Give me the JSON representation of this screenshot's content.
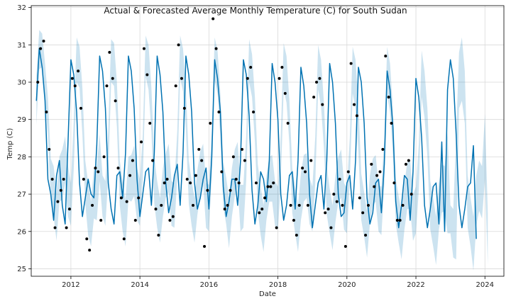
{
  "colors": {
    "forecast_line": "#0072B2",
    "uncertainty_band": "#0072B2",
    "actual_points": "#000000",
    "grid": "#d9d9d9",
    "axis": "#000000"
  },
  "chart_data": {
    "type": "line",
    "title": "Actual & Forecasted Average Monthly Temperature (C) for South Sudan",
    "xlabel": "Date",
    "ylabel": "Temp (C)",
    "x_ticks": [
      2012,
      2014,
      2016,
      2018,
      2020,
      2022,
      2024
    ],
    "y_ticks": [
      25,
      26,
      27,
      28,
      29,
      30,
      31,
      32
    ],
    "xlim": [
      2010.85,
      2024.55
    ],
    "ylim": [
      24.8,
      32.05
    ],
    "grid": true,
    "legend": "none",
    "series": [
      {
        "kind": "band",
        "x_start": 2011.0,
        "x_step": 0.08333,
        "note_units": "decimal year",
        "lower": [
          28.85,
          30.35,
          30.4,
          29.5,
          28.6,
          26.75,
          26.4,
          25.75,
          26.8,
          26.85,
          27.3,
          26.4,
          26.15,
          27.7,
          30.0,
          29.85,
          28.6,
          26.75,
          25.9,
          25.6,
          26.35,
          26.3,
          27.35,
          26.4,
          26.15,
          27.5,
          30.0,
          29.9,
          28.8,
          26.7,
          26.0,
          25.6,
          26.85,
          26.8,
          26.95,
          26.3,
          26.15,
          27.4,
          30.15,
          29.8,
          28.65,
          26.75,
          26.1,
          25.7,
          26.4,
          26.9,
          27.05,
          26.15,
          26.1,
          27.45,
          30.1,
          29.75,
          28.7,
          26.75,
          26.15,
          25.7,
          26.45,
          26.95,
          27.3,
          26.1,
          26.0,
          27.5,
          30.05,
          29.7,
          28.5,
          26.65,
          26.2,
          25.55,
          26.4,
          26.95,
          27.2,
          26.0,
          26.1,
          27.4,
          30.0,
          29.6,
          28.4,
          26.55,
          25.9,
          25.45,
          26.3,
          26.8,
          26.8,
          26.15,
          26.05,
          27.3,
          29.8,
          29.45,
          28.35,
          26.5,
          25.95,
          25.45,
          26.3,
          26.8,
          26.9,
          26.2,
          26.0,
          27.3,
          29.8,
          29.35,
          28.25,
          26.45,
          25.95,
          25.5,
          26.25,
          26.8,
          26.9,
          26.05,
          25.95,
          27.3,
          29.7,
          29.3,
          28.15,
          26.3,
          25.85,
          25.3,
          26.2,
          26.7,
          26.8,
          26.0,
          25.9,
          27.25,
          29.65,
          29.2,
          28.05,
          26.2,
          25.7,
          25.25,
          26.05,
          26.6,
          26.6,
          25.75,
          25.95,
          27.1,
          29.6,
          29.05,
          28.0,
          26.05,
          25.6,
          25.1,
          26.05,
          26.5,
          26.55,
          25.95,
          25.95,
          25.3,
          25.25,
          29.3,
          29.5,
          28.9,
          26.1,
          25.6,
          24.95,
          26.15,
          26.55,
          26.35,
          27.4,
          25.1
        ],
        "upper": [
          30.2,
          31.4,
          31.3,
          30.5,
          29.6,
          27.95,
          27.75,
          27.05,
          28.0,
          28.2,
          28.55,
          27.75,
          27.3,
          29.0,
          31.2,
          30.95,
          29.85,
          27.9,
          27.3,
          26.8,
          27.7,
          27.75,
          28.6,
          27.5,
          27.35,
          28.75,
          31.15,
          31.05,
          30.0,
          27.9,
          27.35,
          26.85,
          28.0,
          28.05,
          28.3,
          27.7,
          27.4,
          28.6,
          31.25,
          31.0,
          29.85,
          28.0,
          27.35,
          26.9,
          27.7,
          28.1,
          28.35,
          27.35,
          27.3,
          28.7,
          31.25,
          30.9,
          29.85,
          27.9,
          27.35,
          26.9,
          27.65,
          28.15,
          28.35,
          27.3,
          27.25,
          28.7,
          31.2,
          30.85,
          29.7,
          27.85,
          27.45,
          26.9,
          27.7,
          28.2,
          28.4,
          27.25,
          27.25,
          28.6,
          31.15,
          30.75,
          29.6,
          27.8,
          27.2,
          26.7,
          27.5,
          28.0,
          28.05,
          27.35,
          27.2,
          28.6,
          31.05,
          30.7,
          29.5,
          27.7,
          27.2,
          26.7,
          27.55,
          28.05,
          28.1,
          27.45,
          27.2,
          28.55,
          31.0,
          30.6,
          29.45,
          27.75,
          27.15,
          26.7,
          27.5,
          28.0,
          28.2,
          27.3,
          27.15,
          28.5,
          30.95,
          30.6,
          29.45,
          27.55,
          27.05,
          26.55,
          27.5,
          27.95,
          28.05,
          27.25,
          27.2,
          28.5,
          30.95,
          30.5,
          29.3,
          27.4,
          26.95,
          26.5,
          27.3,
          27.85,
          27.9,
          27.0,
          27.2,
          28.35,
          30.85,
          30.3,
          29.3,
          27.35,
          26.9,
          26.4,
          27.3,
          27.8,
          27.75,
          28.65,
          26.7,
          26.6,
          28.6,
          30.8,
          31.2,
          30.3,
          27.5,
          26.9,
          26.4,
          27.5,
          27.9,
          27.75,
          29.15,
          26.5
        ]
      },
      {
        "name": "",
        "kind": "forecast",
        "x_start": 2011.0,
        "x_step": 0.08333,
        "values": [
          29.5,
          30.9,
          30.4,
          29.5,
          27.4,
          27.0,
          26.3,
          27.5,
          27.9,
          26.7,
          26.2,
          28.4,
          30.6,
          30.2,
          29.2,
          27.3,
          26.4,
          26.9,
          27.4,
          27.0,
          26.9,
          28.3,
          30.7,
          30.3,
          29.3,
          27.3,
          26.6,
          26.2,
          27.5,
          27.6,
          26.9,
          28.1,
          30.7,
          30.3,
          29.3,
          27.4,
          26.4,
          27.0,
          27.6,
          27.7,
          26.7,
          28.1,
          30.7,
          30.2,
          29.2,
          27.3,
          26.5,
          26.9,
          27.5,
          27.8,
          26.7,
          28.1,
          30.7,
          30.2,
          29.2,
          27.3,
          26.6,
          26.9,
          27.4,
          27.7,
          26.6,
          28.0,
          30.6,
          30.1,
          29.2,
          27.2,
          26.4,
          26.8,
          27.4,
          27.4,
          26.7,
          27.9,
          30.6,
          30.2,
          29.1,
          27.1,
          26.2,
          26.7,
          27.6,
          27.4,
          26.8,
          27.9,
          30.5,
          30.0,
          29.0,
          27.0,
          26.3,
          26.7,
          27.5,
          27.6,
          26.6,
          27.9,
          30.4,
          29.9,
          28.9,
          27.0,
          26.1,
          26.7,
          27.3,
          27.5,
          26.6,
          27.9,
          30.5,
          30.0,
          28.9,
          27.0,
          26.4,
          26.5,
          27.3,
          27.5,
          26.6,
          27.9,
          30.4,
          30.0,
          28.9,
          26.9,
          26.2,
          26.5,
          27.3,
          27.4,
          26.5,
          27.8,
          30.3,
          29.8,
          28.8,
          26.8,
          26.1,
          26.7,
          27.5,
          27.4,
          26.3,
          27.6,
          30.1,
          29.6,
          28.5,
          26.7,
          26.1,
          26.6,
          27.2,
          27.3,
          26.2,
          28.4,
          26.0,
          29.8,
          30.6,
          30.1,
          28.6,
          26.7,
          26.1,
          26.6,
          27.2,
          27.3,
          28.3,
          25.8
        ]
      },
      {
        "name": "",
        "kind": "actual",
        "points": [
          [
            2011.04,
            30.0
          ],
          [
            2011.12,
            30.9
          ],
          [
            2011.21,
            31.1
          ],
          [
            2011.29,
            29.2
          ],
          [
            2011.37,
            28.2
          ],
          [
            2011.46,
            27.4
          ],
          [
            2011.54,
            26.1
          ],
          [
            2011.62,
            26.8
          ],
          [
            2011.71,
            27.1
          ],
          [
            2011.79,
            27.4
          ],
          [
            2011.87,
            26.1
          ],
          [
            2011.96,
            26.6
          ],
          [
            2012.04,
            30.1
          ],
          [
            2012.12,
            29.9
          ],
          [
            2012.21,
            30.3
          ],
          [
            2012.29,
            29.3
          ],
          [
            2012.37,
            27.4
          ],
          [
            2012.46,
            25.8
          ],
          [
            2012.54,
            25.5
          ],
          [
            2012.62,
            26.7
          ],
          [
            2012.71,
            27.7
          ],
          [
            2012.79,
            27.6
          ],
          [
            2012.87,
            26.3
          ],
          [
            2012.96,
            28.0
          ],
          [
            2013.04,
            29.9
          ],
          [
            2013.12,
            30.8
          ],
          [
            2013.21,
            30.1
          ],
          [
            2013.29,
            29.5
          ],
          [
            2013.37,
            27.7
          ],
          [
            2013.46,
            26.9
          ],
          [
            2013.54,
            25.8
          ],
          [
            2013.62,
            26.8
          ],
          [
            2013.71,
            27.5
          ],
          [
            2013.79,
            27.9
          ],
          [
            2013.87,
            26.3
          ],
          [
            2013.96,
            26.9
          ],
          [
            2014.04,
            28.4
          ],
          [
            2014.12,
            30.9
          ],
          [
            2014.21,
            30.2
          ],
          [
            2014.29,
            28.9
          ],
          [
            2014.37,
            27.9
          ],
          [
            2014.46,
            26.6
          ],
          [
            2014.54,
            25.9
          ],
          [
            2014.62,
            26.7
          ],
          [
            2014.71,
            27.3
          ],
          [
            2014.79,
            27.4
          ],
          [
            2014.87,
            26.3
          ],
          [
            2014.96,
            26.4
          ],
          [
            2015.04,
            29.9
          ],
          [
            2015.12,
            31.0
          ],
          [
            2015.21,
            30.1
          ],
          [
            2015.29,
            29.3
          ],
          [
            2015.37,
            27.4
          ],
          [
            2015.46,
            27.3
          ],
          [
            2015.54,
            26.7
          ],
          [
            2015.62,
            27.5
          ],
          [
            2015.71,
            28.2
          ],
          [
            2015.79,
            27.9
          ],
          [
            2015.87,
            25.6
          ],
          [
            2015.96,
            27.1
          ],
          [
            2016.04,
            28.9
          ],
          [
            2016.12,
            31.7
          ],
          [
            2016.21,
            30.9
          ],
          [
            2016.29,
            29.2
          ],
          [
            2016.37,
            27.6
          ],
          [
            2016.46,
            26.6
          ],
          [
            2016.54,
            26.7
          ],
          [
            2016.62,
            27.1
          ],
          [
            2016.71,
            28.0
          ],
          [
            2016.79,
            27.4
          ],
          [
            2016.87,
            27.3
          ],
          [
            2016.96,
            28.2
          ],
          [
            2017.04,
            27.9
          ],
          [
            2017.12,
            30.1
          ],
          [
            2017.21,
            30.4
          ],
          [
            2017.29,
            29.2
          ],
          [
            2017.37,
            27.3
          ],
          [
            2017.46,
            26.5
          ],
          [
            2017.54,
            26.6
          ],
          [
            2017.62,
            26.9
          ],
          [
            2017.71,
            27.2
          ],
          [
            2017.79,
            27.2
          ],
          [
            2017.87,
            27.3
          ],
          [
            2017.96,
            26.1
          ],
          [
            2018.04,
            30.1
          ],
          [
            2018.12,
            30.4
          ],
          [
            2018.21,
            29.7
          ],
          [
            2018.29,
            28.9
          ],
          [
            2018.37,
            26.7
          ],
          [
            2018.46,
            26.3
          ],
          [
            2018.54,
            25.9
          ],
          [
            2018.62,
            26.7
          ],
          [
            2018.71,
            27.7
          ],
          [
            2018.79,
            27.6
          ],
          [
            2018.87,
            26.7
          ],
          [
            2018.96,
            27.9
          ],
          [
            2019.04,
            29.6
          ],
          [
            2019.12,
            30.0
          ],
          [
            2019.21,
            30.1
          ],
          [
            2019.29,
            29.4
          ],
          [
            2019.37,
            26.5
          ],
          [
            2019.46,
            26.6
          ],
          [
            2019.54,
            26.1
          ],
          [
            2019.62,
            27.0
          ],
          [
            2019.71,
            26.8
          ],
          [
            2019.79,
            27.4
          ],
          [
            2019.87,
            26.7
          ],
          [
            2019.96,
            25.6
          ],
          [
            2020.04,
            27.6
          ],
          [
            2020.12,
            30.5
          ],
          [
            2020.21,
            29.4
          ],
          [
            2020.29,
            29.1
          ],
          [
            2020.37,
            26.9
          ],
          [
            2020.46,
            26.5
          ],
          [
            2020.54,
            25.9
          ],
          [
            2020.62,
            26.7
          ],
          [
            2020.71,
            27.8
          ],
          [
            2020.79,
            27.2
          ],
          [
            2020.87,
            27.5
          ],
          [
            2020.96,
            27.6
          ],
          [
            2021.04,
            28.2
          ],
          [
            2021.12,
            30.7
          ],
          [
            2021.21,
            29.6
          ],
          [
            2021.29,
            28.9
          ],
          [
            2021.37,
            27.3
          ],
          [
            2021.46,
            26.3
          ],
          [
            2021.54,
            26.3
          ],
          [
            2021.62,
            26.7
          ],
          [
            2021.71,
            27.8
          ],
          [
            2021.79,
            27.9
          ],
          [
            2021.87,
            27.0
          ]
        ]
      }
    ]
  }
}
